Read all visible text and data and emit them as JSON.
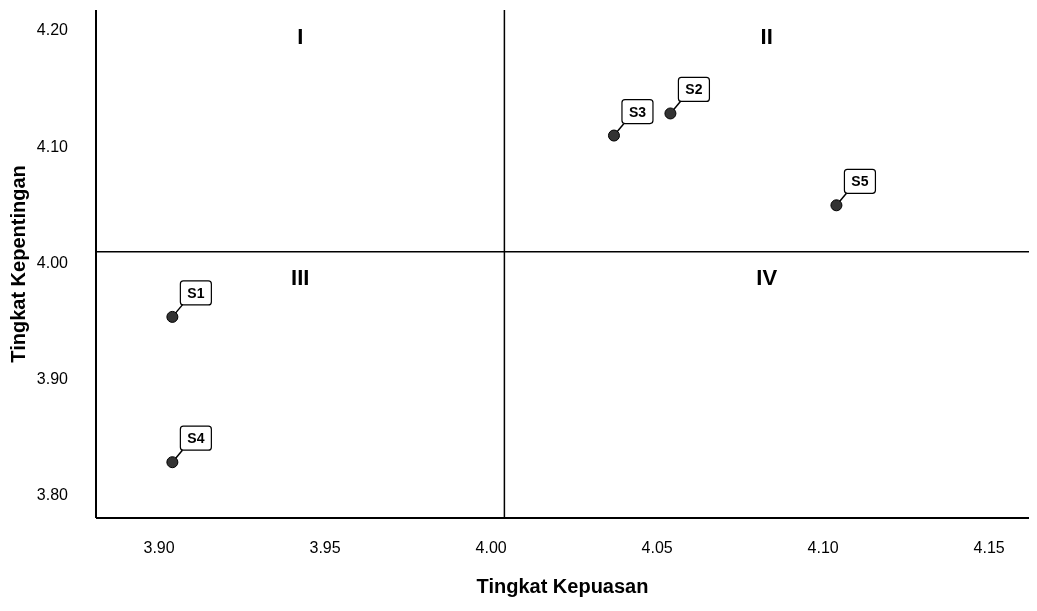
{
  "chart_data": {
    "type": "scatter",
    "xlabel": "Tingkat Kepuasan",
    "ylabel": "Tingkat Kepentingan",
    "x": [
      3.904,
      4.054,
      4.037,
      3.904,
      4.104
    ],
    "values": [
      3.953,
      4.128,
      4.109,
      3.828,
      4.049
    ],
    "value_labels": [
      "S1",
      "S2",
      "S3",
      "S4",
      "S5"
    ],
    "color": "#333333",
    "marker": "circle",
    "xlim": [
      3.881,
      4.162
    ],
    "xticks": [
      {
        "value": 3.9,
        "label": "3.90"
      },
      {
        "value": 3.95,
        "label": "3.95"
      },
      {
        "value": 4.0,
        "label": "4.00"
      },
      {
        "value": 4.05,
        "label": "4.05"
      },
      {
        "value": 4.1,
        "label": "4.10"
      },
      {
        "value": 4.15,
        "label": "4.15"
      }
    ],
    "ylim": [
      3.78,
      4.217
    ],
    "yticks": [
      {
        "value": 3.8,
        "label": "3.80"
      },
      {
        "value": 3.9,
        "label": "3.90"
      },
      {
        "value": 4.0,
        "label": "4.00"
      },
      {
        "value": 4.1,
        "label": "4.10"
      },
      {
        "value": 4.2,
        "label": "4.20"
      }
    ],
    "ref_lines": [
      {
        "axis": "x",
        "value": 4.004,
        "color": "#000000"
      },
      {
        "axis": "y",
        "value": 4.009,
        "color": "#000000"
      }
    ],
    "annotations": [
      "I",
      "II",
      "III",
      "IV"
    ],
    "grid": false,
    "legend": false
  }
}
